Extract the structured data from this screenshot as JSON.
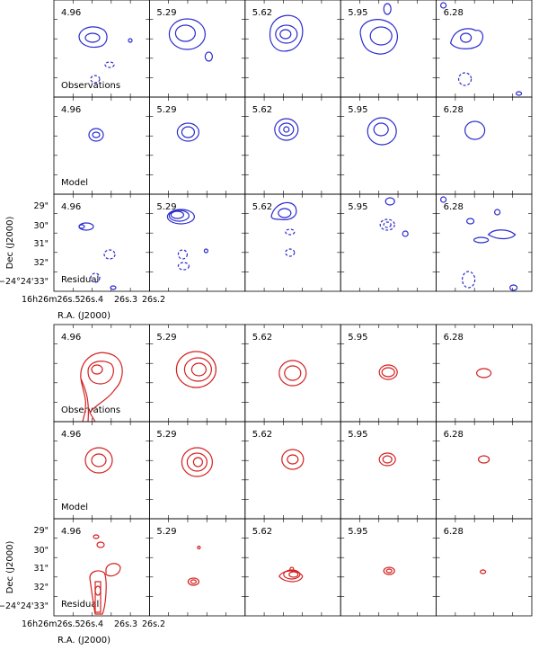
{
  "panels": [
    {
      "id": "blue",
      "color": "#2b2bd0",
      "velocities": [
        "4.96",
        "5.29",
        "5.62",
        "5.95",
        "6.28"
      ],
      "row_labels": [
        "Observations",
        "Model",
        "Residual"
      ]
    },
    {
      "id": "red",
      "color": "#d42020",
      "velocities": [
        "4.96",
        "5.29",
        "5.62",
        "5.95",
        "6.28"
      ],
      "row_labels": [
        "Observations",
        "Model",
        "Residual"
      ]
    }
  ],
  "axes": {
    "ylabel": "Dec (J2000)",
    "xlabel": "R.A. (J2000)",
    "dec_ticks": [
      "29\"",
      "30\"",
      "31\"",
      "32\"",
      "−24°24'33\""
    ],
    "ra_ticks": [
      "16h26m26s.5",
      "26s.4",
      "26s.3",
      "26s.2"
    ]
  }
}
